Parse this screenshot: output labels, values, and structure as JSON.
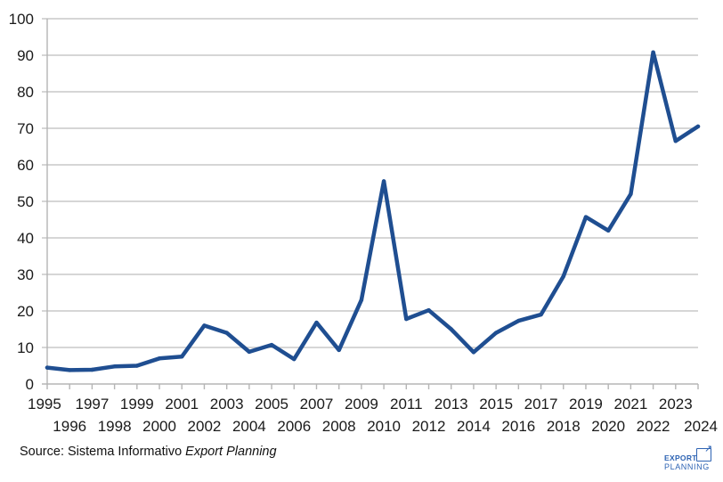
{
  "chart_data": {
    "type": "line",
    "title": "",
    "xlabel": "",
    "ylabel": "",
    "x": [
      "1995",
      "1996",
      "1997",
      "1998",
      "1999",
      "2000",
      "2001",
      "2002",
      "2003",
      "2004",
      "2005",
      "2006",
      "2007",
      "2008",
      "2009",
      "2010",
      "2011",
      "2012",
      "2013",
      "2014",
      "2015",
      "2016",
      "2017",
      "2018",
      "2019",
      "2020",
      "2021",
      "2022",
      "2023",
      "2024"
    ],
    "series": [
      {
        "color": "#1f4e91",
        "values": [
          4.5,
          3.8,
          3.9,
          4.8,
          5.0,
          7.0,
          7.5,
          16.0,
          14.0,
          8.8,
          10.7,
          6.8,
          16.8,
          9.3,
          23.0,
          55.5,
          17.8,
          20.2,
          15.0,
          8.7,
          14.0,
          17.3,
          19.0,
          29.5,
          45.7,
          42.0,
          52.0,
          90.8,
          66.5,
          70.5
        ]
      }
    ],
    "ylim": [
      0,
      100
    ],
    "yticks": [
      0,
      10,
      20,
      30,
      40,
      50,
      60,
      70,
      80,
      90,
      100
    ],
    "grid": true,
    "legend": "none"
  },
  "footer": {
    "source_prefix": "Source: Sistema Informativo ",
    "source_emphasis": "Export Planning",
    "logo_line1": "EXPORT",
    "logo_line2": "PLANNING"
  }
}
